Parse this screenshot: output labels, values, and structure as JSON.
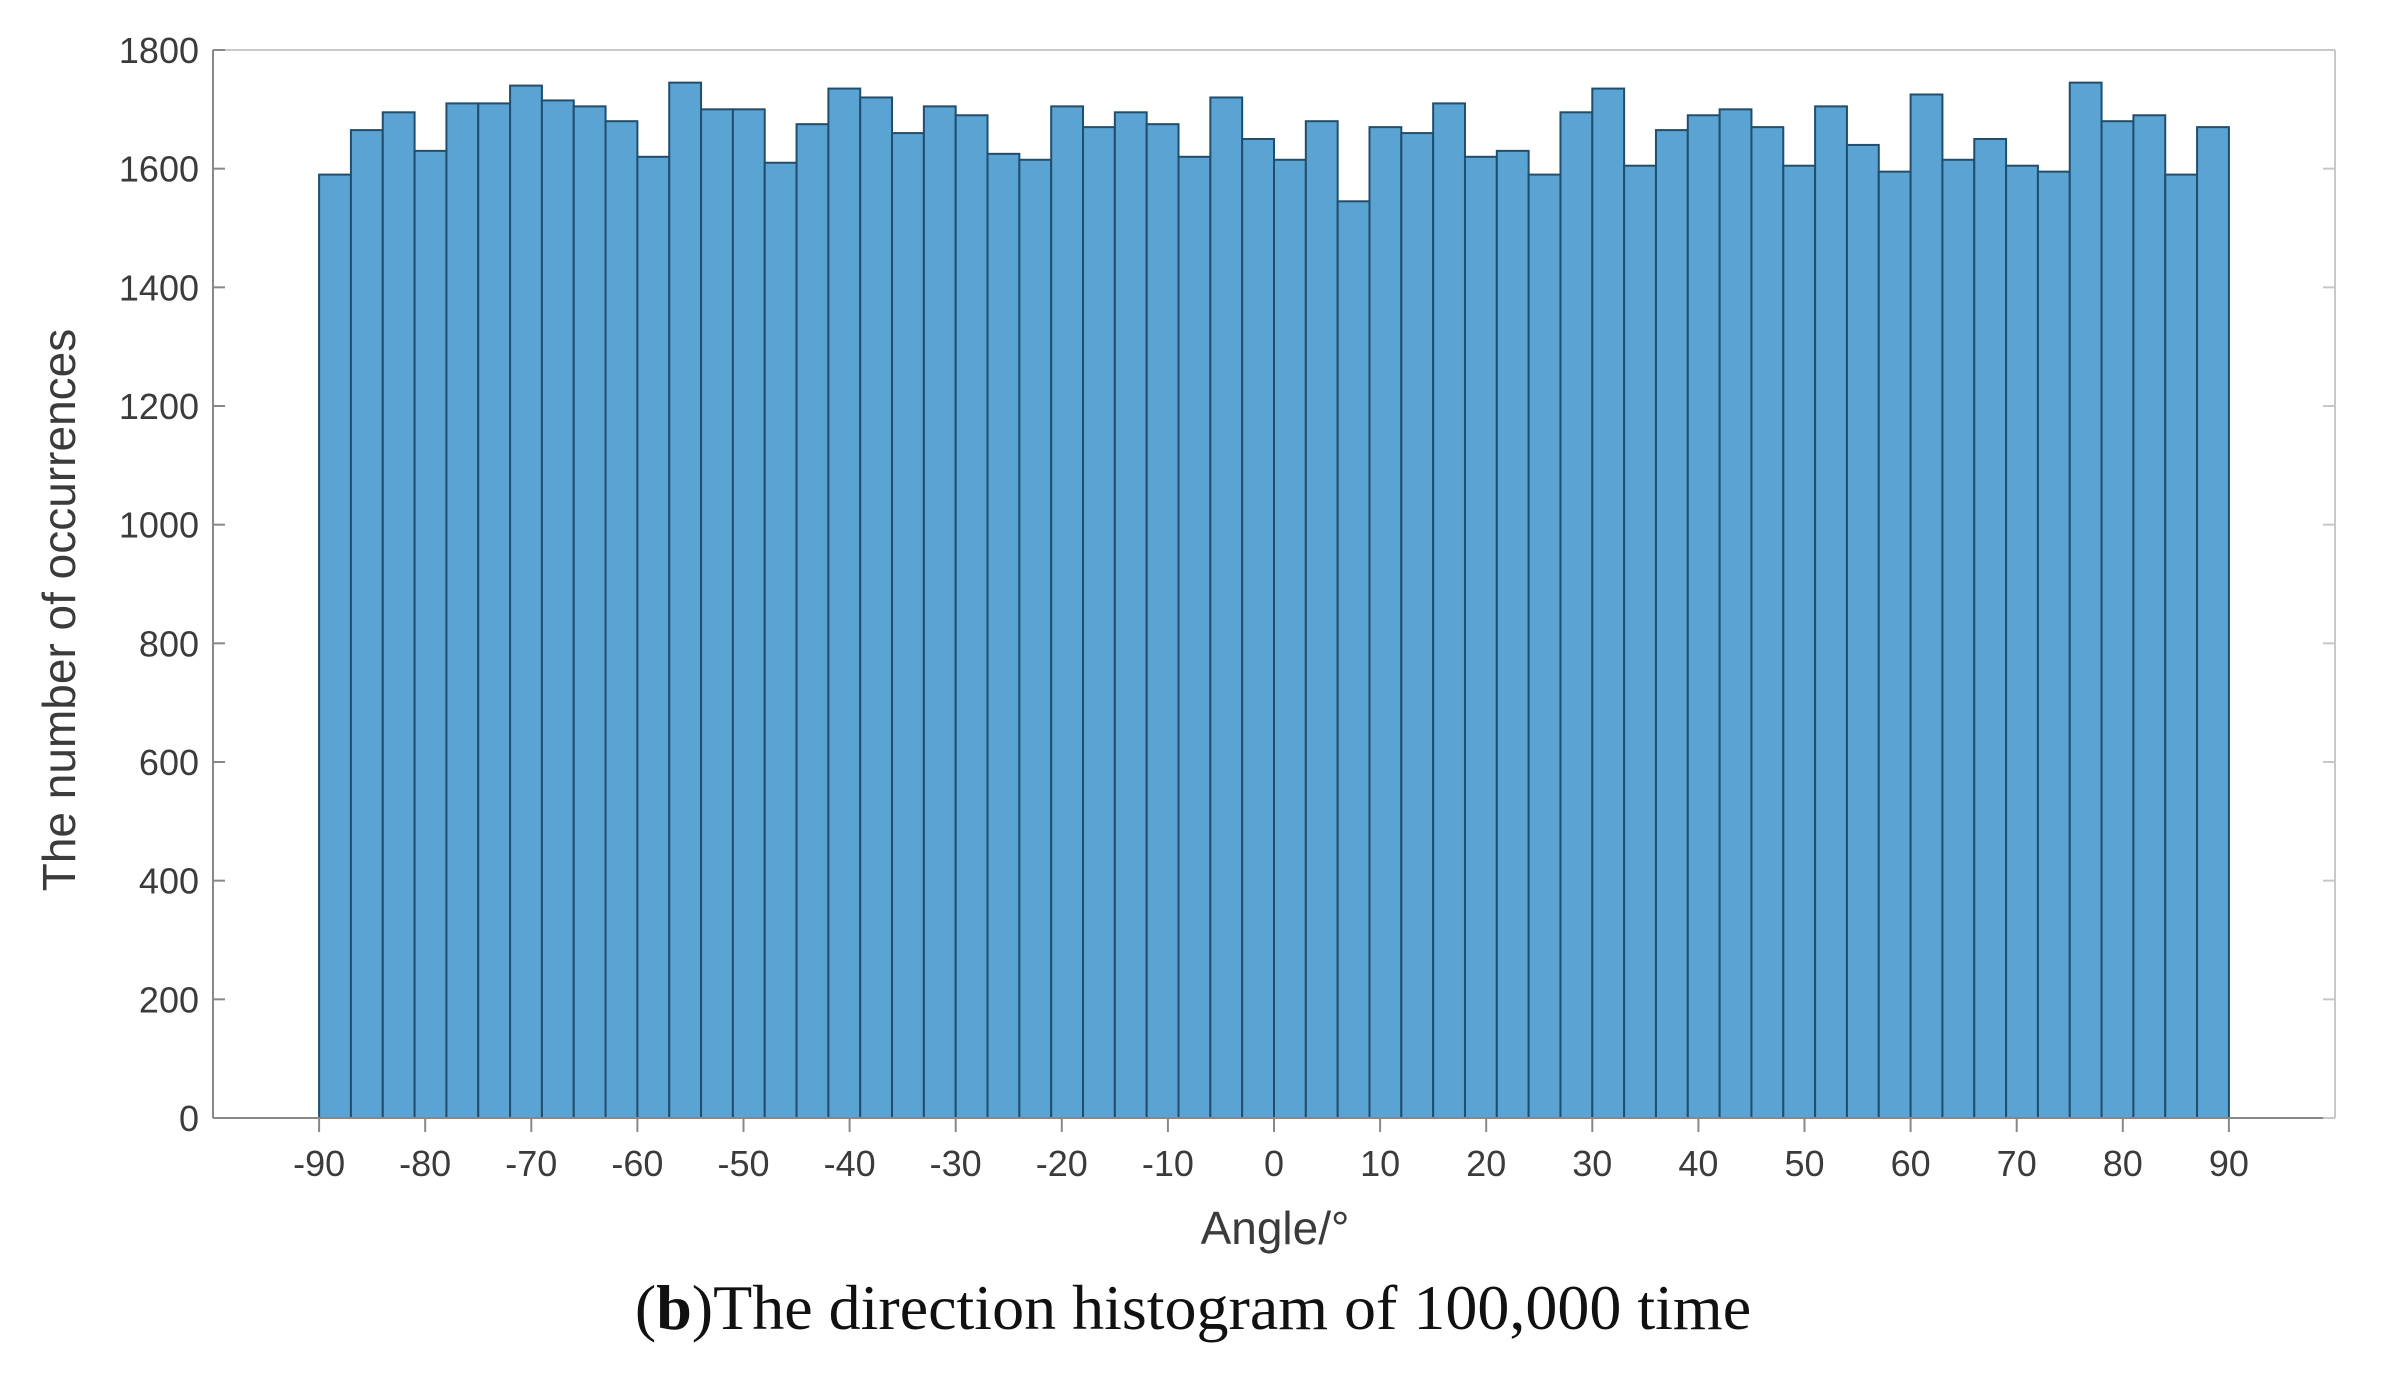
{
  "caption": {
    "label": "b",
    "text": "The direction histogram of 100,000 time"
  },
  "colors": {
    "bar_fill": "#5ba3d3",
    "bar_edge": "#1f4e6e",
    "axis": "#888888",
    "grid_box": "#c8c8c8"
  },
  "chart_data": {
    "type": "bar",
    "title": "",
    "xlabel": "Angle/°",
    "ylabel": "The number of occurrences",
    "xlim": [
      -100,
      100
    ],
    "ylim": [
      0,
      1800
    ],
    "xticks": [
      -90,
      -80,
      -70,
      -60,
      -50,
      -40,
      -30,
      -20,
      -10,
      0,
      10,
      20,
      30,
      40,
      50,
      60,
      70,
      80,
      90
    ],
    "yticks": [
      0,
      200,
      400,
      600,
      800,
      1000,
      1200,
      1400,
      1600,
      1800
    ],
    "bin_edges": [
      -90,
      90
    ],
    "values": [
      1590,
      1665,
      1695,
      1630,
      1710,
      1710,
      1740,
      1715,
      1705,
      1680,
      1620,
      1745,
      1700,
      1700,
      1610,
      1675,
      1735,
      1720,
      1660,
      1705,
      1690,
      1625,
      1615,
      1705,
      1670,
      1695,
      1675,
      1620,
      1720,
      1650,
      1615,
      1680,
      1545,
      1670,
      1660,
      1710,
      1620,
      1630,
      1590,
      1695,
      1735,
      1605,
      1665,
      1690,
      1700,
      1670,
      1605,
      1705,
      1640,
      1595,
      1725,
      1615,
      1650,
      1605,
      1595,
      1745,
      1680,
      1690,
      1590,
      1670
    ],
    "grid": false,
    "legend": "none"
  }
}
